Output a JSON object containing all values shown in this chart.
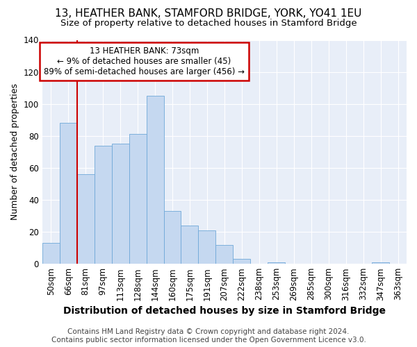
{
  "title1": "13, HEATHER BANK, STAMFORD BRIDGE, YORK, YO41 1EU",
  "title2": "Size of property relative to detached houses in Stamford Bridge",
  "xlabel": "Distribution of detached houses by size in Stamford Bridge",
  "ylabel": "Number of detached properties",
  "footer1": "Contains HM Land Registry data © Crown copyright and database right 2024.",
  "footer2": "Contains public sector information licensed under the Open Government Licence v3.0.",
  "annotation_title": "13 HEATHER BANK: 73sqm",
  "annotation_line1": "← 9% of detached houses are smaller (45)",
  "annotation_line2": "89% of semi-detached houses are larger (456) →",
  "bar_categories": [
    "50sqm",
    "66sqm",
    "81sqm",
    "97sqm",
    "113sqm",
    "128sqm",
    "144sqm",
    "160sqm",
    "175sqm",
    "191sqm",
    "207sqm",
    "222sqm",
    "238sqm",
    "253sqm",
    "269sqm",
    "285sqm",
    "300sqm",
    "316sqm",
    "332sqm",
    "347sqm",
    "363sqm"
  ],
  "bar_values": [
    13,
    88,
    56,
    74,
    75,
    81,
    105,
    33,
    24,
    21,
    12,
    3,
    0,
    1,
    0,
    0,
    0,
    0,
    0,
    1,
    0
  ],
  "bar_color": "#c5d8f0",
  "bar_edge_color": "#6fa8d8",
  "red_line_x": 1.5,
  "ylim": [
    0,
    140
  ],
  "yticks": [
    0,
    20,
    40,
    60,
    80,
    100,
    120,
    140
  ],
  "bg_color": "#e8eef8",
  "grid_color": "#ffffff",
  "annotation_box_color": "#ffffff",
  "annotation_box_edge": "#cc0000",
  "red_line_color": "#cc0000",
  "title1_fontsize": 11,
  "title2_fontsize": 9.5,
  "xlabel_fontsize": 10,
  "ylabel_fontsize": 9,
  "tick_fontsize": 8.5,
  "footer_fontsize": 7.5,
  "ann_fontsize": 8.5
}
